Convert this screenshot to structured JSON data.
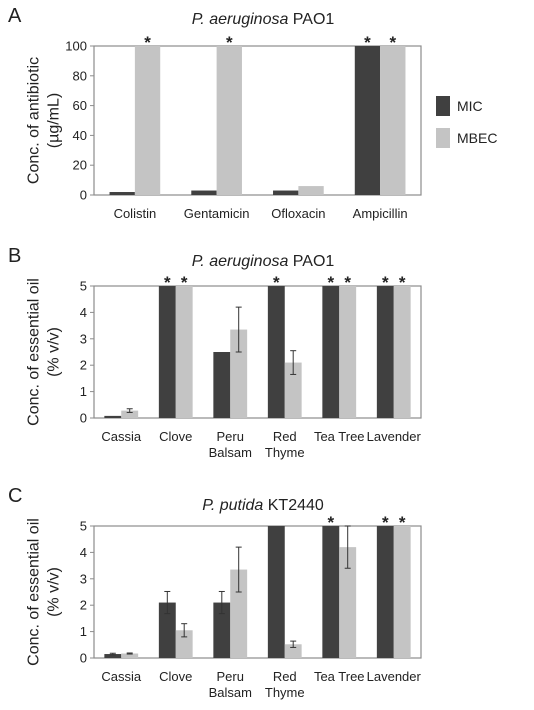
{
  "colors": {
    "MIC": "#404040",
    "MBEC": "#c4c4c4",
    "axis": "#8c8c8c",
    "errorbar": "#333333"
  },
  "legend": [
    {
      "key": "MIC",
      "label": "MIC"
    },
    {
      "key": "MBEC",
      "label": "MBEC"
    }
  ],
  "chart_data": [
    {
      "type": "bar",
      "panel": "A",
      "title_italic": "P. aeruginosa",
      "title_rest": " PAO1",
      "ylabel_lines": [
        "Conc. of antibiotic",
        "(µg/mL)"
      ],
      "ylim": [
        0,
        100
      ],
      "yticks": [
        0,
        20,
        40,
        60,
        80,
        100
      ],
      "categories": [
        [
          "Colistin"
        ],
        [
          "Gentamicin"
        ],
        [
          "Ofloxacin"
        ],
        [
          "Ampicillin"
        ]
      ],
      "series": [
        {
          "name": "MIC",
          "values": [
            2,
            3,
            3,
            100
          ],
          "errors": [
            0,
            0,
            0,
            0
          ],
          "stars": [
            false,
            false,
            false,
            true
          ]
        },
        {
          "name": "MBEC",
          "values": [
            100,
            100,
            6,
            100
          ],
          "errors": [
            0,
            0,
            0,
            0
          ],
          "stars": [
            true,
            true,
            false,
            true
          ]
        }
      ]
    },
    {
      "type": "bar",
      "panel": "B",
      "title_italic": "P. aeruginosa",
      "title_rest": " PAO1",
      "ylabel_lines": [
        "Conc. of essential oil",
        "(% v/v)"
      ],
      "ylim": [
        0,
        5
      ],
      "yticks": [
        0,
        1,
        2,
        3,
        4,
        5
      ],
      "categories": [
        [
          "Cassia"
        ],
        [
          "Clove"
        ],
        [
          "Peru",
          "Balsam"
        ],
        [
          "Red",
          "Thyme"
        ],
        [
          "Tea Tree"
        ],
        [
          "Lavender"
        ]
      ],
      "series": [
        {
          "name": "MIC",
          "values": [
            0.08,
            5,
            2.5,
            5,
            5,
            5
          ],
          "errors": [
            0,
            0,
            0,
            0,
            0,
            0
          ],
          "stars": [
            false,
            true,
            false,
            true,
            true,
            true
          ]
        },
        {
          "name": "MBEC",
          "values": [
            0.28,
            5,
            3.35,
            2.1,
            5,
            5
          ],
          "errors": [
            0.07,
            0,
            0.85,
            0.45,
            0,
            0
          ],
          "stars": [
            false,
            true,
            false,
            false,
            true,
            true
          ]
        }
      ]
    },
    {
      "type": "bar",
      "panel": "C",
      "title_italic": "P. putida",
      "title_rest": " KT2440",
      "ylabel_lines": [
        "Conc. of essential oil",
        "(% v/v)"
      ],
      "ylim": [
        0,
        5
      ],
      "yticks": [
        0,
        1,
        2,
        3,
        4,
        5
      ],
      "categories": [
        [
          "Cassia"
        ],
        [
          "Clove"
        ],
        [
          "Peru",
          "Balsam"
        ],
        [
          "Red",
          "Thyme"
        ],
        [
          "Tea Tree"
        ],
        [
          "Lavender"
        ]
      ],
      "series": [
        {
          "name": "MIC",
          "values": [
            0.15,
            2.1,
            2.1,
            5,
            5,
            5
          ],
          "errors": [
            0.03,
            0.42,
            0.42,
            0,
            0,
            0
          ],
          "stars": [
            false,
            false,
            false,
            false,
            true,
            true
          ]
        },
        {
          "name": "MBEC",
          "values": [
            0.17,
            1.05,
            3.35,
            0.52,
            4.2,
            5
          ],
          "errors": [
            0.02,
            0.25,
            0.85,
            0.12,
            0.8,
            0
          ],
          "stars": [
            false,
            false,
            false,
            false,
            false,
            true
          ]
        }
      ]
    }
  ]
}
